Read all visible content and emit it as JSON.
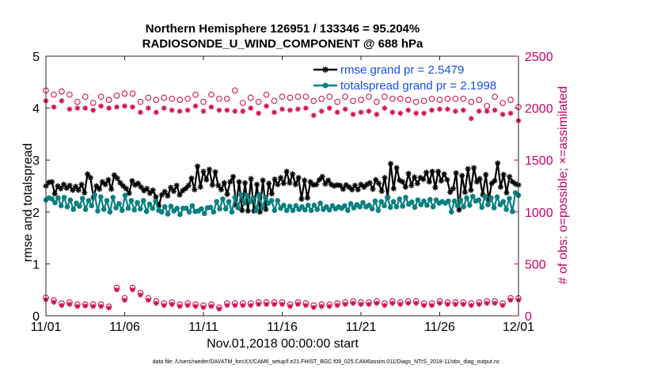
{
  "chart_data": {
    "type": "line",
    "title": [
      "Northern Hemisphere 126951 / 133346 = 95.204%",
      "RADIOSONDE_U_WIND_COMPONENT @ 688 hPa"
    ],
    "xlabel": "Nov.01,2018 00:00:00 start",
    "ylabel": "rmse and totalspread",
    "ylabel_right": "# of obs: o=possible; ×=assimilated",
    "footer": "data file: /Users/raeder/DAI/ATM_forcXX/CAM6_setup/f.e21.FHIST_BGC.f09_025.CAM6assim.011/Diags_NTrS_2018-11/obs_diag_output.nc",
    "xlim": [
      0,
      30
    ],
    "ylim": [
      0,
      5
    ],
    "ylim_right": [
      0,
      2500
    ],
    "x_ticks": [
      0,
      5,
      10,
      15,
      20,
      25,
      30
    ],
    "x_tick_labels": [
      "11/01",
      "11/06",
      "11/11",
      "11/16",
      "11/21",
      "11/26",
      "12/01"
    ],
    "y_ticks": [
      0,
      1,
      2,
      3,
      4,
      5
    ],
    "y_tick_labels": [
      "0",
      "1",
      "2",
      "3",
      "4",
      "5"
    ],
    "y_ticks_right": [
      0,
      500,
      1000,
      1500,
      2000,
      2500
    ],
    "y_tick_labels_right": [
      "0",
      "500",
      "1000",
      "1500",
      "2000",
      "2500"
    ],
    "x_step": 0.25,
    "series": [
      {
        "name": "rmse grand pr = 2.5479",
        "color": "#000000",
        "axis": "left",
        "values": [
          2.5,
          2.57,
          2.58,
          2.35,
          2.5,
          2.45,
          2.53,
          2.46,
          2.51,
          2.42,
          2.49,
          2.42,
          2.53,
          2.37,
          2.73,
          2.66,
          2.28,
          2.5,
          2.44,
          2.58,
          2.53,
          2.62,
          2.44,
          2.71,
          2.65,
          2.56,
          2.5,
          2.45,
          2.36,
          2.6,
          2.52,
          2.55,
          2.48,
          2.41,
          2.45,
          2.36,
          2.42,
          2.29,
          2.12,
          2.33,
          2.39,
          2.31,
          2.47,
          2.4,
          2.51,
          2.33,
          2.41,
          2.45,
          2.51,
          2.65,
          2.43,
          2.88,
          2.48,
          2.78,
          2.62,
          2.82,
          2.52,
          2.77,
          2.51,
          2.43,
          2.56,
          2.34,
          2.58,
          2.68,
          2.13,
          2.58,
          2.03,
          2.56,
          2.02,
          2.64,
          2.02,
          2.53,
          2.0,
          2.61,
          2.05,
          2.55,
          2.35,
          2.63,
          2.53,
          2.66,
          2.55,
          2.78,
          2.56,
          2.73,
          2.53,
          2.66,
          2.25,
          2.61,
          2.27,
          2.58,
          2.52,
          2.53,
          2.62,
          2.68,
          2.54,
          2.61,
          2.53,
          2.5,
          2.52,
          2.51,
          2.44,
          2.52,
          2.48,
          2.43,
          2.51,
          2.43,
          2.53,
          2.48,
          2.53,
          2.56,
          2.44,
          2.62,
          2.55,
          2.4,
          2.66,
          2.28,
          2.93,
          2.45,
          2.85,
          2.61,
          2.58,
          2.48,
          2.74,
          2.51,
          2.67,
          2.55,
          2.66,
          2.63,
          2.76,
          2.58,
          2.78,
          2.47,
          2.78,
          2.6,
          2.73,
          2.62,
          2.38,
          2.45,
          2.75,
          2.04,
          2.7,
          2.38,
          2.83,
          2.42,
          2.85,
          2.58,
          2.64,
          2.33,
          2.72,
          2.23,
          2.55,
          2.6,
          2.94,
          2.48,
          2.72,
          2.37,
          2.68,
          2.58,
          2.54,
          2.52
        ],
        "line_start": 4
      },
      {
        "name": "totalspread grand pr = 2.1998",
        "color": "#0b8080",
        "axis": "left",
        "values": [
          2.23,
          2.27,
          2.25,
          2.18,
          2.27,
          2.12,
          2.28,
          2.1,
          2.23,
          2.05,
          2.17,
          2.11,
          2.26,
          2.05,
          2.22,
          2.12,
          2.33,
          2.02,
          2.29,
          2.05,
          2.22,
          2.0,
          2.28,
          2.08,
          2.16,
          2.03,
          2.32,
          2.07,
          2.22,
          2.04,
          2.18,
          2.06,
          2.22,
          2.01,
          2.15,
          2.07,
          2.21,
          2.03,
          2.0,
          2.1,
          1.96,
          2.11,
          2.02,
          2.07,
          1.95,
          2.07,
          2.07,
          2.0,
          2.12,
          2.01,
          2.02,
          2.06,
          1.97,
          2.08,
          2.09,
          2.0,
          2.2,
          2.06,
          2.25,
          2.06,
          2.2,
          2.0,
          2.28,
          2.08,
          2.33,
          2.17,
          2.32,
          2.2,
          2.27,
          2.03,
          2.33,
          2.08,
          2.28,
          2.17,
          2.22,
          2.03,
          2.22,
          2.07,
          2.13,
          2.03,
          2.11,
          2.03,
          2.12,
          2.05,
          2.1,
          2.04,
          2.13,
          2.03,
          2.13,
          2.05,
          2.17,
          2.05,
          2.1,
          2.04,
          2.12,
          2.06,
          2.1,
          2.07,
          2.12,
          2.03,
          2.16,
          2.08,
          2.14,
          2.1,
          2.18,
          2.1,
          2.13,
          2.06,
          2.21,
          2.03,
          2.2,
          2.12,
          2.28,
          2.09,
          2.2,
          2.1,
          2.25,
          2.11,
          2.28,
          2.15,
          2.19,
          2.09,
          2.23,
          2.14,
          2.21,
          2.13,
          2.24,
          2.1,
          2.23,
          2.17,
          2.2,
          2.17,
          2.21,
          2.0,
          2.21,
          2.12,
          2.23,
          2.1,
          2.27,
          2.13,
          2.3,
          2.21,
          2.23,
          2.09,
          2.3,
          2.14,
          2.27,
          2.08,
          2.29,
          2.14,
          2.2,
          2.05,
          2.26,
          2.01,
          2.37,
          2.32
        ],
        "line_start": 4
      },
      {
        "name": "possible obs",
        "color": "#d01050",
        "axis": "right",
        "marker": "circle",
        "x": [
          0,
          0.5,
          1,
          1.5,
          2,
          2.5,
          3,
          3.5,
          4,
          4.5,
          5,
          5.5,
          6,
          6.5,
          7,
          7.5,
          8,
          8.5,
          9,
          9.5,
          10,
          10.5,
          11,
          11.5,
          12,
          12.5,
          13,
          13.5,
          14,
          14.5,
          15,
          15.5,
          16,
          16.5,
          17,
          17.5,
          18,
          18.5,
          19,
          19.5,
          20,
          20.5,
          21,
          21.5,
          22,
          22.5,
          23,
          23.5,
          24,
          24.5,
          25,
          25.5,
          26,
          26.5,
          27,
          27.5,
          28,
          28.5,
          29,
          29.5,
          30
        ],
        "values": [
          2170,
          2130,
          2160,
          2130,
          2060,
          2110,
          2050,
          2110,
          2080,
          2120,
          2140,
          2140,
          2060,
          2100,
          2080,
          2100,
          2090,
          2080,
          2090,
          2130,
          2060,
          2130,
          2090,
          2090,
          2170,
          2050,
          2100,
          2060,
          2130,
          2070,
          2110,
          2100,
          2110,
          2110,
          2070,
          2090,
          2110,
          2060,
          2110,
          2070,
          2080,
          2110,
          2060,
          2110,
          2090,
          2090,
          2080,
          2060,
          2070,
          2090,
          2080,
          2090,
          2090,
          2090,
          2060,
          2080,
          2020,
          2110,
          2050,
          2080,
          2010
        ],
        "values_low": [
          175,
          150,
          120,
          130,
          110,
          110,
          110,
          110,
          90,
          270,
          170,
          270,
          220,
          170,
          140,
          120,
          130,
          110,
          120,
          110,
          100,
          110,
          80,
          120,
          120,
          120,
          120,
          130,
          130,
          130,
          130,
          110,
          130,
          120,
          100,
          110,
          110,
          120,
          130,
          140,
          130,
          130,
          140,
          120,
          140,
          130,
          140,
          140,
          120,
          120,
          140,
          130,
          130,
          130,
          120,
          130,
          140,
          140,
          120,
          170,
          170
        ]
      },
      {
        "name": "assimilated obs",
        "color": "#d01050",
        "axis": "right",
        "marker": "star",
        "x": [
          0,
          0.5,
          1,
          1.5,
          2,
          2.5,
          3,
          3.5,
          4,
          4.5,
          5,
          5.5,
          6,
          6.5,
          7,
          7.5,
          8,
          8.5,
          9,
          9.5,
          10,
          10.5,
          11,
          11.5,
          12,
          12.5,
          13,
          13.5,
          14,
          14.5,
          15,
          15.5,
          16,
          16.5,
          17,
          17.5,
          18,
          18.5,
          19,
          19.5,
          20,
          20.5,
          21,
          21.5,
          22,
          22.5,
          23,
          23.5,
          24,
          24.5,
          25,
          25.5,
          26,
          26.5,
          27,
          27.5,
          28,
          28.5,
          29,
          29.5,
          30
        ],
        "values": [
          2070,
          2010,
          2070,
          1990,
          2000,
          2000,
          1980,
          2020,
          2000,
          2010,
          2020,
          2010,
          1960,
          2000,
          1960,
          2000,
          1980,
          1970,
          1980,
          2020,
          1970,
          2010,
          1980,
          1980,
          1970,
          1970,
          2000,
          1950,
          2020,
          1960,
          1990,
          1980,
          1990,
          2000,
          1930,
          1970,
          2000,
          1960,
          1990,
          1940,
          1960,
          1970,
          1940,
          2000,
          1960,
          1950,
          1980,
          1950,
          1950,
          1980,
          1990,
          1990,
          1970,
          1980,
          1900,
          1970,
          1970,
          1980,
          1940,
          1950,
          1880
        ],
        "values_low": [
          155,
          130,
          100,
          110,
          90,
          95,
          90,
          90,
          75,
          250,
          150,
          250,
          200,
          150,
          120,
          100,
          110,
          90,
          100,
          90,
          80,
          90,
          65,
          100,
          100,
          100,
          100,
          110,
          110,
          110,
          110,
          90,
          110,
          100,
          80,
          90,
          90,
          100,
          110,
          120,
          110,
          110,
          120,
          100,
          120,
          110,
          120,
          120,
          100,
          100,
          120,
          110,
          110,
          110,
          100,
          110,
          120,
          120,
          100,
          150,
          150
        ]
      }
    ]
  }
}
